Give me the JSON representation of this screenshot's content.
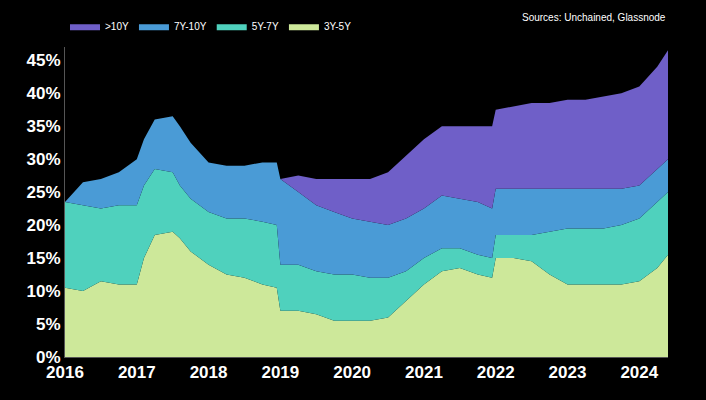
{
  "chart_data": {
    "type": "area",
    "stacked": true,
    "grid": false,
    "legend": "top left",
    "annotations": [
      "Sources: Unchained, Glassnode"
    ],
    "x": [
      2016.0,
      2016.25,
      2016.5,
      2016.75,
      2017.0,
      2017.1,
      2017.25,
      2017.5,
      2017.6,
      2017.75,
      2018.0,
      2018.25,
      2018.5,
      2018.75,
      2018.95,
      2019.0,
      2019.25,
      2019.5,
      2019.75,
      2020.0,
      2020.25,
      2020.5,
      2020.75,
      2021.0,
      2021.25,
      2021.5,
      2021.75,
      2021.95,
      2022.0,
      2022.25,
      2022.5,
      2022.75,
      2023.0,
      2023.25,
      2023.5,
      2023.75,
      2024.0,
      2024.25,
      2024.4
    ],
    "series": [
      {
        "name": "3Y-5Y",
        "color": "#cde89a",
        "values": [
          10.5,
          10,
          11.5,
          11,
          11,
          15,
          18.5,
          19,
          18,
          16,
          14,
          12.5,
          12,
          11,
          10.5,
          7,
          7,
          6.5,
          5.5,
          5.5,
          5.5,
          6,
          8.5,
          11,
          13,
          13.5,
          12.5,
          12,
          15,
          15,
          14.5,
          12.5,
          11,
          11,
          11,
          11,
          11.5,
          13.5,
          15.5
        ]
      },
      {
        "name": "5Y-7Y",
        "color": "#4fd1bd",
        "values": [
          13,
          13,
          11,
          12,
          12,
          11,
          10,
          9,
          8,
          8,
          8,
          8.5,
          9,
          9.5,
          9.5,
          7,
          7,
          6.5,
          7,
          7,
          6.5,
          6,
          4.5,
          4,
          3.5,
          3,
          3,
          3,
          3.5,
          3.5,
          4,
          6.5,
          8.5,
          8.5,
          8.5,
          9,
          9.5,
          10,
          9.5
        ]
      },
      {
        "name": "7Y-10Y",
        "color": "#4a9bd6",
        "values": [
          0,
          3.5,
          4.5,
          5,
          7,
          7,
          7.5,
          8.5,
          9,
          8.5,
          7.5,
          8,
          8,
          9,
          9.5,
          13,
          11,
          10,
          9.5,
          8.5,
          8.5,
          8,
          8,
          7.5,
          8,
          7.5,
          8,
          7.5,
          7,
          7,
          7,
          6.5,
          6,
          6,
          6,
          5.5,
          5,
          5,
          5
        ]
      },
      {
        "name": ">10Y",
        "color": "#6f5fc8",
        "values": [
          0,
          0,
          0,
          0,
          0,
          0,
          0,
          0,
          0,
          0,
          0,
          0,
          0,
          0,
          0,
          0,
          2.5,
          4,
          5,
          6,
          6.5,
          8,
          9.5,
          10.5,
          10.5,
          11,
          11.5,
          12.5,
          12,
          12.5,
          13,
          13,
          13.5,
          13.5,
          14,
          14.5,
          15,
          15.5,
          16.5
        ]
      }
    ],
    "xlim": [
      2016,
      2024.4
    ],
    "xticks": [
      2016,
      2017,
      2018,
      2019,
      2020,
      2021,
      2022,
      2023,
      2024
    ],
    "ylim": [
      0,
      47
    ],
    "yticks": [
      {
        "value": 0,
        "label": "0%"
      },
      {
        "value": 5,
        "label": "5%"
      },
      {
        "value": 10,
        "label": "10%"
      },
      {
        "value": 15,
        "label": "15%"
      },
      {
        "value": 20,
        "label": "20%"
      },
      {
        "value": 25,
        "label": "25%"
      },
      {
        "value": 30,
        "label": "30%"
      },
      {
        "value": 35,
        "label": "35%"
      },
      {
        "value": 40,
        "label": "40%"
      },
      {
        "value": 45,
        "label": "45%"
      }
    ]
  }
}
